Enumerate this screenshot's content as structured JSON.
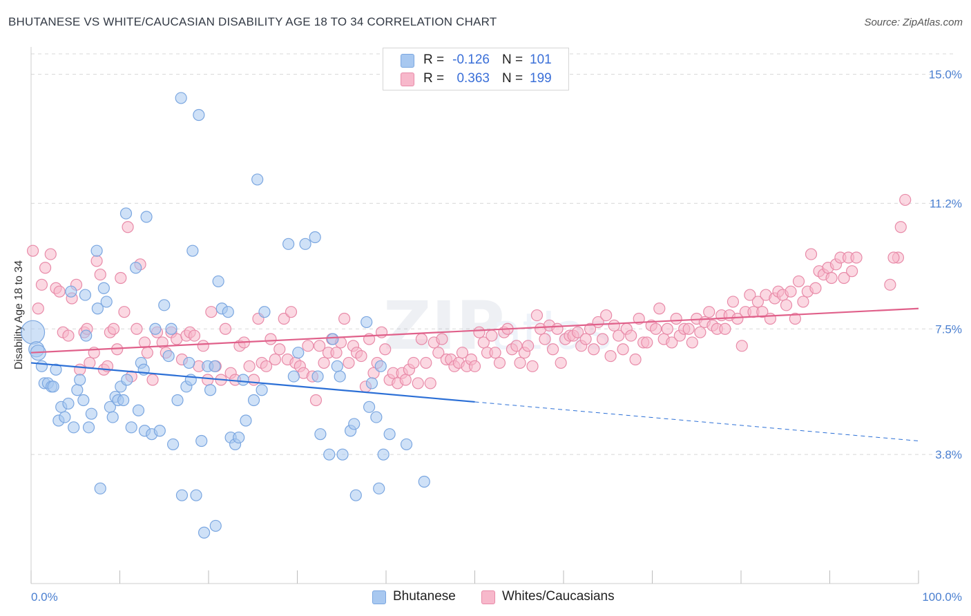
{
  "header": {
    "title": "BHUTANESE VS WHITE/CAUCASIAN DISABILITY AGE 18 TO 34 CORRELATION CHART",
    "source": "Source: ZipAtlas.com"
  },
  "stats": [
    {
      "r_label": "R =",
      "r_value": "-0.126",
      "n_label": "N =",
      "n_value": "101",
      "color": "#a8c8f0",
      "border": "#7aa6e0"
    },
    {
      "r_label": "R =",
      "r_value": "0.363",
      "n_label": "N =",
      "n_value": "199",
      "color": "#f7b8cb",
      "border": "#e88aa8"
    }
  ],
  "legend": [
    {
      "label": "Bhutanese",
      "color": "#a8c8f0",
      "border": "#7aa6e0"
    },
    {
      "label": "Whites/Caucasians",
      "color": "#f7b8cb",
      "border": "#e88aa8"
    }
  ],
  "colors": {
    "blue_line": "#2b6fd6",
    "pink_line": "#e0608a",
    "tick_text": "#4a7fd0",
    "grid": "#d8d8d8"
  },
  "chart_data": {
    "type": "scatter",
    "title": "BHUTANESE VS WHITE/CAUCASIAN DISABILITY AGE 18 TO 34 CORRELATION CHART",
    "xlabel": "",
    "ylabel": "Disability Age 18 to 34",
    "xlim": [
      0,
      100
    ],
    "ylim": [
      0,
      15.6
    ],
    "x_tick_labels": [
      "0.0%",
      "100.0%"
    ],
    "y_ticks": [
      3.8,
      7.5,
      11.2,
      15.0
    ],
    "y_tick_labels": [
      "3.8%",
      "7.5%",
      "11.2%",
      "15.0%"
    ],
    "grid": true,
    "series": [
      {
        "name": "Bhutanese",
        "trend": {
          "x": [
            0,
            50,
            100
          ],
          "y": [
            6.5,
            5.35,
            4.2
          ],
          "solid_until": 50
        },
        "points": [
          [
            0.2,
            7.4
          ],
          [
            0.6,
            6.9
          ],
          [
            0.8,
            6.8
          ],
          [
            1.2,
            6.4
          ],
          [
            1.5,
            5.9
          ],
          [
            1.9,
            5.9
          ],
          [
            2.3,
            5.8
          ],
          [
            2.5,
            5.8
          ],
          [
            2.8,
            6.3
          ],
          [
            3.1,
            4.8
          ],
          [
            3.4,
            5.2
          ],
          [
            3.8,
            4.9
          ],
          [
            4.2,
            5.3
          ],
          [
            4.5,
            8.6
          ],
          [
            4.8,
            4.6
          ],
          [
            5.2,
            5.7
          ],
          [
            5.5,
            6.0
          ],
          [
            5.9,
            5.4
          ],
          [
            6.1,
            8.5
          ],
          [
            6.2,
            7.3
          ],
          [
            6.5,
            4.6
          ],
          [
            6.8,
            5.0
          ],
          [
            7.4,
            9.8
          ],
          [
            7.5,
            8.1
          ],
          [
            7.8,
            2.8
          ],
          [
            8.2,
            8.7
          ],
          [
            8.5,
            8.3
          ],
          [
            8.9,
            5.2
          ],
          [
            9.2,
            4.9
          ],
          [
            9.5,
            5.5
          ],
          [
            9.8,
            5.4
          ],
          [
            10.1,
            5.8
          ],
          [
            10.4,
            5.4
          ],
          [
            10.7,
            10.9
          ],
          [
            10.8,
            6.0
          ],
          [
            11.3,
            4.6
          ],
          [
            11.8,
            9.3
          ],
          [
            12.1,
            5.1
          ],
          [
            12.4,
            6.5
          ],
          [
            12.7,
            6.3
          ],
          [
            12.8,
            4.5
          ],
          [
            13.0,
            10.8
          ],
          [
            13.6,
            4.4
          ],
          [
            14.0,
            7.5
          ],
          [
            14.5,
            4.5
          ],
          [
            15.0,
            8.2
          ],
          [
            15.5,
            6.7
          ],
          [
            15.8,
            7.5
          ],
          [
            16.0,
            4.1
          ],
          [
            16.5,
            5.4
          ],
          [
            16.9,
            14.3
          ],
          [
            17.0,
            2.6
          ],
          [
            17.5,
            5.8
          ],
          [
            17.8,
            6.5
          ],
          [
            18.0,
            6.0
          ],
          [
            18.2,
            9.8
          ],
          [
            18.6,
            2.6
          ],
          [
            18.9,
            13.8
          ],
          [
            19.2,
            4.2
          ],
          [
            19.5,
            1.5
          ],
          [
            19.9,
            6.4
          ],
          [
            20.2,
            5.7
          ],
          [
            20.7,
            6.4
          ],
          [
            20.8,
            1.7
          ],
          [
            21.1,
            8.9
          ],
          [
            21.5,
            8.1
          ],
          [
            22.2,
            8.0
          ],
          [
            22.5,
            4.3
          ],
          [
            23.0,
            4.1
          ],
          [
            23.4,
            4.3
          ],
          [
            23.9,
            6.0
          ],
          [
            24.2,
            4.8
          ],
          [
            25.1,
            5.4
          ],
          [
            25.5,
            11.9
          ],
          [
            26.0,
            5.7
          ],
          [
            26.3,
            8.0
          ],
          [
            29.0,
            10.0
          ],
          [
            29.6,
            6.1
          ],
          [
            30.1,
            6.8
          ],
          [
            30.9,
            10.0
          ],
          [
            32.0,
            10.2
          ],
          [
            32.3,
            6.1
          ],
          [
            32.6,
            4.4
          ],
          [
            33.6,
            3.8
          ],
          [
            34.0,
            7.2
          ],
          [
            34.5,
            6.4
          ],
          [
            34.8,
            6.1
          ],
          [
            35.1,
            3.8
          ],
          [
            36.0,
            4.5
          ],
          [
            36.4,
            4.7
          ],
          [
            36.6,
            2.6
          ],
          [
            37.8,
            7.7
          ],
          [
            38.1,
            5.2
          ],
          [
            38.4,
            5.9
          ],
          [
            38.9,
            4.9
          ],
          [
            39.2,
            2.8
          ],
          [
            39.4,
            6.4
          ],
          [
            39.7,
            3.8
          ],
          [
            40.4,
            4.4
          ],
          [
            42.3,
            4.1
          ],
          [
            44.3,
            3.0
          ]
        ]
      },
      {
        "name": "Whites/Caucasians",
        "trend": {
          "x": [
            0,
            100
          ],
          "y": [
            6.8,
            8.1
          ]
        },
        "points": [
          [
            0.2,
            9.8
          ],
          [
            0.8,
            8.1
          ],
          [
            1.2,
            8.8
          ],
          [
            1.6,
            9.3
          ],
          [
            2.2,
            9.7
          ],
          [
            2.8,
            8.7
          ],
          [
            3.2,
            8.6
          ],
          [
            3.6,
            7.4
          ],
          [
            4.2,
            7.3
          ],
          [
            4.6,
            8.4
          ],
          [
            5.1,
            8.8
          ],
          [
            5.5,
            6.3
          ],
          [
            6.0,
            7.4
          ],
          [
            6.3,
            7.5
          ],
          [
            6.6,
            6.5
          ],
          [
            7.1,
            6.8
          ],
          [
            7.4,
            9.5
          ],
          [
            7.8,
            9.1
          ],
          [
            8.2,
            6.3
          ],
          [
            8.6,
            6.4
          ],
          [
            8.9,
            7.4
          ],
          [
            9.3,
            7.5
          ],
          [
            9.7,
            6.9
          ],
          [
            10.1,
            9.0
          ],
          [
            10.5,
            8.0
          ],
          [
            10.9,
            10.5
          ],
          [
            11.3,
            6.1
          ],
          [
            11.9,
            7.5
          ],
          [
            12.3,
            9.4
          ],
          [
            12.8,
            7.1
          ],
          [
            13.1,
            6.8
          ],
          [
            13.7,
            6.0
          ],
          [
            14.2,
            7.4
          ],
          [
            14.8,
            7.1
          ],
          [
            15.2,
            6.8
          ],
          [
            15.8,
            7.4
          ],
          [
            16.4,
            7.2
          ],
          [
            17.0,
            6.6
          ],
          [
            17.5,
            7.3
          ],
          [
            17.9,
            7.4
          ],
          [
            18.4,
            7.3
          ],
          [
            18.9,
            6.4
          ],
          [
            19.4,
            7.0
          ],
          [
            19.9,
            6.0
          ],
          [
            20.3,
            8.0
          ],
          [
            20.8,
            6.4
          ],
          [
            21.4,
            6.0
          ],
          [
            21.9,
            7.5
          ],
          [
            22.5,
            6.2
          ],
          [
            23.0,
            6.0
          ],
          [
            23.5,
            7.0
          ],
          [
            24.0,
            7.1
          ],
          [
            24.6,
            6.4
          ],
          [
            25.1,
            6.0
          ],
          [
            25.6,
            7.8
          ],
          [
            26.0,
            6.5
          ],
          [
            26.5,
            6.4
          ],
          [
            27.0,
            7.2
          ],
          [
            27.5,
            6.6
          ],
          [
            28.0,
            6.9
          ],
          [
            28.5,
            7.8
          ],
          [
            28.9,
            6.6
          ],
          [
            29.3,
            8.0
          ],
          [
            29.8,
            6.5
          ],
          [
            30.3,
            6.4
          ],
          [
            30.7,
            6.2
          ],
          [
            31.2,
            7.0
          ],
          [
            31.7,
            6.1
          ],
          [
            32.1,
            5.4
          ],
          [
            32.5,
            7.0
          ],
          [
            33.0,
            6.5
          ],
          [
            33.5,
            6.8
          ],
          [
            33.9,
            7.2
          ],
          [
            34.4,
            6.8
          ],
          [
            34.9,
            7.1
          ],
          [
            35.3,
            7.8
          ],
          [
            35.8,
            6.5
          ],
          [
            36.3,
            7.0
          ],
          [
            36.7,
            6.8
          ],
          [
            37.2,
            6.7
          ],
          [
            37.7,
            5.8
          ],
          [
            38.1,
            7.2
          ],
          [
            38.6,
            6.2
          ],
          [
            39.0,
            6.5
          ],
          [
            39.5,
            7.4
          ],
          [
            39.9,
            6.9
          ],
          [
            40.4,
            6.0
          ],
          [
            40.8,
            6.2
          ],
          [
            41.3,
            5.9
          ],
          [
            41.8,
            6.2
          ],
          [
            42.2,
            6.0
          ],
          [
            42.6,
            6.3
          ],
          [
            43.1,
            6.5
          ],
          [
            43.6,
            5.9
          ],
          [
            44.0,
            7.2
          ],
          [
            44.5,
            6.5
          ],
          [
            45.0,
            5.9
          ],
          [
            45.4,
            7.1
          ],
          [
            45.9,
            6.8
          ],
          [
            46.3,
            7.2
          ],
          [
            46.8,
            6.6
          ],
          [
            47.3,
            6.6
          ],
          [
            47.7,
            6.4
          ],
          [
            48.2,
            6.5
          ],
          [
            48.6,
            6.8
          ],
          [
            49.1,
            6.4
          ],
          [
            49.6,
            6.6
          ],
          [
            50.0,
            6.4
          ],
          [
            50.5,
            7.4
          ],
          [
            51.0,
            7.1
          ],
          [
            51.4,
            6.8
          ],
          [
            51.9,
            7.3
          ],
          [
            52.3,
            6.8
          ],
          [
            52.8,
            6.5
          ],
          [
            53.3,
            7.4
          ],
          [
            53.7,
            7.5
          ],
          [
            54.2,
            6.9
          ],
          [
            54.7,
            7.0
          ],
          [
            55.1,
            6.5
          ],
          [
            55.6,
            6.8
          ],
          [
            56.0,
            7.0
          ],
          [
            56.5,
            6.4
          ],
          [
            57.0,
            7.9
          ],
          [
            57.4,
            7.5
          ],
          [
            57.9,
            7.2
          ],
          [
            58.4,
            7.6
          ],
          [
            58.8,
            6.9
          ],
          [
            59.3,
            7.5
          ],
          [
            59.7,
            6.5
          ],
          [
            60.2,
            7.2
          ],
          [
            60.7,
            7.3
          ],
          [
            61.1,
            7.3
          ],
          [
            61.6,
            7.4
          ],
          [
            62.0,
            7.0
          ],
          [
            62.5,
            7.2
          ],
          [
            63.0,
            7.5
          ],
          [
            63.4,
            6.9
          ],
          [
            63.9,
            7.7
          ],
          [
            64.4,
            7.2
          ],
          [
            64.8,
            7.9
          ],
          [
            65.3,
            6.7
          ],
          [
            65.7,
            7.6
          ],
          [
            66.2,
            7.3
          ],
          [
            66.7,
            6.9
          ],
          [
            67.1,
            7.5
          ],
          [
            67.6,
            7.3
          ],
          [
            68.1,
            6.6
          ],
          [
            68.5,
            7.8
          ],
          [
            69.0,
            7.1
          ],
          [
            69.4,
            7.1
          ],
          [
            69.9,
            7.6
          ],
          [
            70.4,
            7.5
          ],
          [
            70.8,
            8.1
          ],
          [
            71.3,
            7.2
          ],
          [
            71.7,
            7.5
          ],
          [
            72.2,
            7.1
          ],
          [
            72.7,
            7.8
          ],
          [
            73.1,
            7.3
          ],
          [
            73.6,
            7.5
          ],
          [
            74.1,
            7.5
          ],
          [
            74.5,
            7.1
          ],
          [
            75.0,
            7.8
          ],
          [
            75.4,
            7.4
          ],
          [
            75.9,
            7.7
          ],
          [
            76.4,
            8.0
          ],
          [
            76.8,
            7.6
          ],
          [
            77.3,
            7.5
          ],
          [
            77.8,
            7.9
          ],
          [
            78.2,
            7.5
          ],
          [
            78.7,
            7.9
          ],
          [
            79.1,
            8.3
          ],
          [
            79.6,
            7.8
          ],
          [
            80.1,
            7.0
          ],
          [
            80.5,
            8.0
          ],
          [
            81.0,
            8.5
          ],
          [
            81.4,
            8.0
          ],
          [
            81.9,
            8.3
          ],
          [
            82.4,
            8.0
          ],
          [
            82.8,
            8.5
          ],
          [
            83.3,
            7.8
          ],
          [
            83.8,
            8.4
          ],
          [
            84.2,
            8.6
          ],
          [
            84.7,
            8.5
          ],
          [
            85.1,
            8.2
          ],
          [
            85.6,
            8.6
          ],
          [
            86.1,
            7.8
          ],
          [
            86.5,
            8.9
          ],
          [
            87.0,
            8.3
          ],
          [
            87.5,
            8.6
          ],
          [
            87.9,
            9.7
          ],
          [
            88.4,
            8.7
          ],
          [
            88.8,
            9.2
          ],
          [
            89.3,
            9.1
          ],
          [
            89.8,
            9.3
          ],
          [
            90.2,
            9.0
          ],
          [
            90.7,
            9.4
          ],
          [
            91.2,
            9.6
          ],
          [
            91.6,
            9.0
          ],
          [
            92.1,
            9.6
          ],
          [
            92.5,
            9.2
          ],
          [
            93.0,
            9.6
          ],
          [
            98.5,
            11.3
          ],
          [
            98.0,
            10.5
          ],
          [
            97.7,
            9.6
          ],
          [
            97.2,
            9.6
          ],
          [
            96.8,
            8.8
          ]
        ]
      }
    ]
  }
}
